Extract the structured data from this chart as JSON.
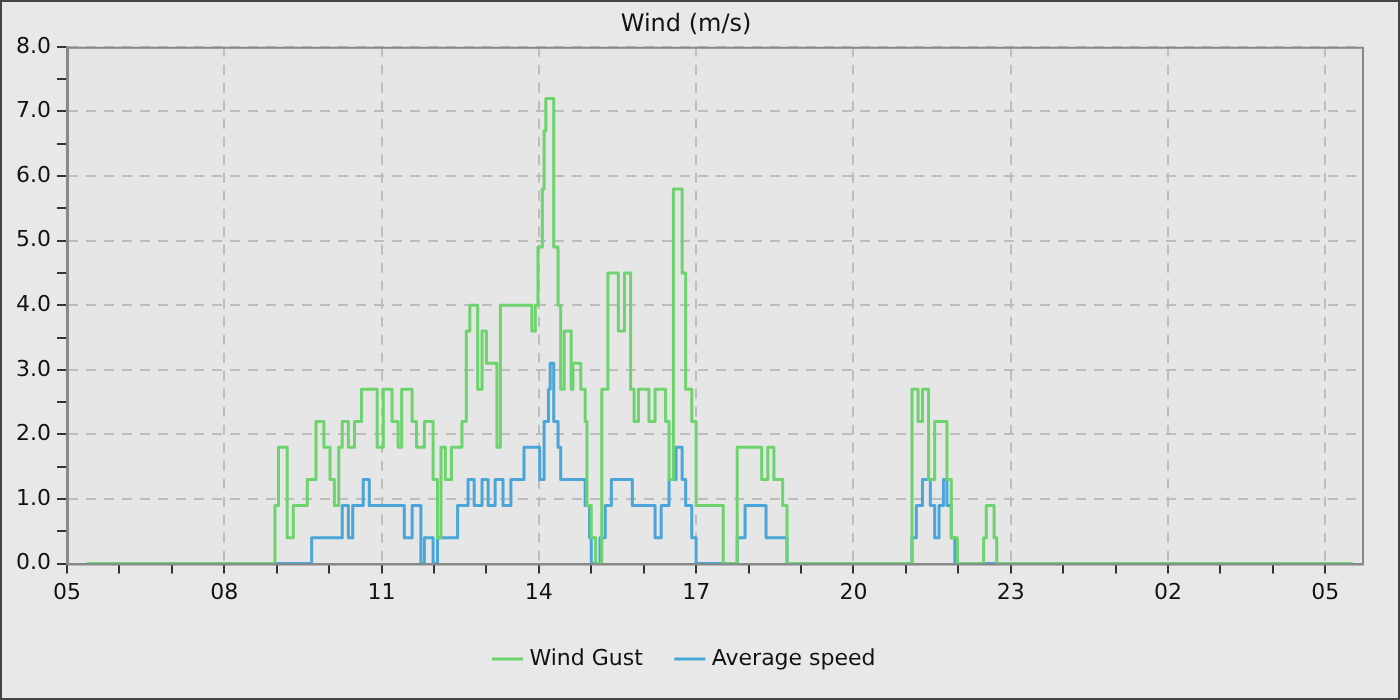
{
  "chart_data": {
    "type": "step",
    "title": "Wind (m/s)",
    "xlim": [
      "--01-01T05:00",
      "--01-02T05:42"
    ],
    "ylim": [
      0,
      8
    ],
    "xticks": [
      {
        "value": "--01-01T05:00",
        "label": "05"
      },
      {
        "value": "--01-01T06:00",
        "label": null
      },
      {
        "value": "--01-01T07:00",
        "label": null
      },
      {
        "value": "--01-01T08:00",
        "label": "08"
      },
      {
        "value": "--01-01T09:00",
        "label": null
      },
      {
        "value": "--01-01T10:00",
        "label": null
      },
      {
        "value": "--01-01T11:00",
        "label": "11"
      },
      {
        "value": "--01-01T12:00",
        "label": null
      },
      {
        "value": "--01-01T13:00",
        "label": null
      },
      {
        "value": "--01-01T14:00",
        "label": "14"
      },
      {
        "value": "--01-01T15:00",
        "label": null
      },
      {
        "value": "--01-01T16:00",
        "label": null
      },
      {
        "value": "--01-01T17:00",
        "label": "17"
      },
      {
        "value": "--01-01T18:00",
        "label": null
      },
      {
        "value": "--01-01T19:00",
        "label": null
      },
      {
        "value": "--01-01T20:00",
        "label": "20"
      },
      {
        "value": "--01-01T21:00",
        "label": null
      },
      {
        "value": "--01-01T22:00",
        "label": null
      },
      {
        "value": "--01-01T23:00",
        "label": "23"
      },
      {
        "value": "--01-02T00:00",
        "label": null
      },
      {
        "value": "--01-02T01:00",
        "label": null
      },
      {
        "value": "--01-02T02:00",
        "label": "02"
      },
      {
        "value": "--01-02T03:00",
        "label": null
      },
      {
        "value": "--01-02T04:00",
        "label": null
      },
      {
        "value": "--01-02T05:00",
        "label": "05"
      }
    ],
    "yticks": [
      {
        "value": 0,
        "label": "0.0"
      },
      {
        "value": 0.5,
        "label": null
      },
      {
        "value": 1,
        "label": "1.0"
      },
      {
        "value": 1.5,
        "label": null
      },
      {
        "value": 2,
        "label": "2.0"
      },
      {
        "value": 2.5,
        "label": null
      },
      {
        "value": 3,
        "label": "3.0"
      },
      {
        "value": 3.5,
        "label": null
      },
      {
        "value": 4,
        "label": "4.0"
      },
      {
        "value": 4.5,
        "label": null
      },
      {
        "value": 5,
        "label": "5.0"
      },
      {
        "value": 5.5,
        "label": null
      },
      {
        "value": 6,
        "label": "6.0"
      },
      {
        "value": 6.5,
        "label": null
      },
      {
        "value": 7,
        "label": "7.0"
      },
      {
        "value": 7.5,
        "label": null
      },
      {
        "value": 8,
        "label": "8.0"
      }
    ],
    "grid": true,
    "legend": "bottom",
    "marker": "none",
    "line_style": "solid",
    "series": [
      {
        "name": "Wind Gust",
        "color": "#6dd46d",
        "x": [
          "--01-01T05:23",
          "--01-01T08:58",
          "--01-01T09:02",
          "--01-01T09:12",
          "--01-01T09:19",
          "--01-01T09:35",
          "--01-01T09:45",
          "--01-01T09:54",
          "--01-01T10:01",
          "--01-01T10:06",
          "--01-01T10:11",
          "--01-01T10:15",
          "--01-01T10:22",
          "--01-01T10:29",
          "--01-01T10:37",
          "--01-01T10:55",
          "--01-01T11:02",
          "--01-01T11:12",
          "--01-01T11:19",
          "--01-01T11:23",
          "--01-01T11:35",
          "--01-01T11:40",
          "--01-01T11:49",
          "--01-01T11:59",
          "--01-01T12:04",
          "--01-01T12:08",
          "--01-01T12:13",
          "--01-01T12:20",
          "--01-01T12:32",
          "--01-01T12:37",
          "--01-01T12:41",
          "--01-01T12:50",
          "--01-01T12:55",
          "--01-01T13:00",
          "--01-01T13:12",
          "--01-01T13:16",
          "--01-01T13:52",
          "--01-01T13:56",
          "--01-01T13:59",
          "--01-01T14:04",
          "--01-01T14:06",
          "--01-01T14:08",
          "--01-01T14:17",
          "--01-01T14:22",
          "--01-01T14:25",
          "--01-01T14:29",
          "--01-01T14:37",
          "--01-01T14:39",
          "--01-01T14:48",
          "--01-01T14:53",
          "--01-01T14:55",
          "--01-01T15:00",
          "--01-01T15:05",
          "--01-01T15:12",
          "--01-01T15:19",
          "--01-01T15:31",
          "--01-01T15:38",
          "--01-01T15:45",
          "--01-01T15:49",
          "--01-01T15:54",
          "--01-01T16:06",
          "--01-01T16:13",
          "--01-01T16:25",
          "--01-01T16:29",
          "--01-01T16:34",
          "--01-01T16:44",
          "--01-01T16:48",
          "--01-01T16:55",
          "--01-01T17:00",
          "--01-01T17:31",
          "--01-01T17:47",
          "--01-01T18:15",
          "--01-01T18:22",
          "--01-01T18:29",
          "--01-01T18:39",
          "--01-01T18:44",
          "--01-01T21:07",
          "--01-01T21:14",
          "--01-01T21:19",
          "--01-01T21:26",
          "--01-01T21:33",
          "--01-01T21:47",
          "--01-01T21:52",
          "--01-01T21:59",
          "--01-01T22:29",
          "--01-01T22:32",
          "--01-01T22:41",
          "--01-01T22:44",
          "--01-02T05:31"
        ],
        "values": [
          0,
          0.9,
          1.8,
          0.4,
          0.9,
          1.3,
          2.2,
          1.8,
          1.3,
          0.9,
          1.8,
          2.2,
          1.8,
          2.2,
          2.7,
          1.8,
          2.7,
          2.2,
          1.8,
          2.7,
          2.2,
          1.8,
          2.2,
          1.3,
          0.4,
          1.8,
          1.3,
          1.8,
          2.2,
          3.6,
          4.0,
          2.7,
          3.6,
          3.1,
          1.8,
          4.0,
          3.6,
          4.0,
          4.9,
          5.8,
          6.7,
          7.2,
          4.9,
          4.0,
          2.7,
          3.6,
          2.7,
          3.1,
          2.7,
          2.2,
          0.9,
          0.4,
          0,
          2.7,
          4.5,
          3.6,
          4.5,
          2.7,
          2.2,
          2.7,
          2.2,
          2.7,
          2.2,
          1.3,
          5.8,
          4.5,
          2.7,
          2.2,
          0.9,
          0,
          1.8,
          1.3,
          1.8,
          1.3,
          0.9,
          0,
          2.7,
          2.2,
          2.7,
          1.3,
          2.2,
          1.3,
          0.4,
          0,
          0.4,
          0.9,
          0.4,
          0,
          0
        ]
      },
      {
        "name": "Average speed",
        "color": "#4aa6d8",
        "x": [
          "--01-01T05:23",
          "--01-01T09:40",
          "--01-01T10:15",
          "--01-01T10:22",
          "--01-01T10:27",
          "--01-01T10:39",
          "--01-01T10:46",
          "--01-01T11:26",
          "--01-01T11:35",
          "--01-01T11:45",
          "--01-01T11:49",
          "--01-01T11:59",
          "--01-01T12:04",
          "--01-01T12:27",
          "--01-01T12:39",
          "--01-01T12:46",
          "--01-01T12:55",
          "--01-01T13:02",
          "--01-01T13:10",
          "--01-01T13:19",
          "--01-01T13:28",
          "--01-01T13:43",
          "--01-01T14:01",
          "--01-01T14:06",
          "--01-01T14:11",
          "--01-01T14:13",
          "--01-01T14:17",
          "--01-01T14:22",
          "--01-01T14:25",
          "--01-01T14:53",
          "--01-01T14:58",
          "--01-01T15:00",
          "--01-01T15:10",
          "--01-01T15:16",
          "--01-01T15:23",
          "--01-01T15:47",
          "--01-01T16:13",
          "--01-01T16:20",
          "--01-01T16:29",
          "--01-01T16:37",
          "--01-01T16:44",
          "--01-01T16:48",
          "--01-01T16:55",
          "--01-01T17:00",
          "--01-01T17:47",
          "--01-01T17:56",
          "--01-01T18:20",
          "--01-01T18:44",
          "--01-01T21:07",
          "--01-01T21:12",
          "--01-01T21:19",
          "--01-01T21:28",
          "--01-01T21:33",
          "--01-01T21:38",
          "--01-01T21:43",
          "--01-01T21:47",
          "--01-01T21:52",
          "--01-01T21:56",
          "--01-02T05:31"
        ],
        "values": [
          0,
          0.4,
          0.9,
          0.4,
          0.9,
          1.3,
          0.9,
          0.4,
          0.9,
          0,
          0.4,
          0,
          0.4,
          0.9,
          1.3,
          0.9,
          1.3,
          0.9,
          1.3,
          0.9,
          1.3,
          1.8,
          1.3,
          2.2,
          2.7,
          3.1,
          2.2,
          1.8,
          1.3,
          0.9,
          0.4,
          0,
          0.4,
          0.9,
          1.3,
          0.9,
          0.4,
          0.9,
          1.3,
          1.8,
          1.3,
          0.9,
          0.4,
          0,
          0.4,
          0.9,
          0.4,
          0,
          0.4,
          0.9,
          1.3,
          0.9,
          0.4,
          0.9,
          1.3,
          0.9,
          0.4,
          0,
          0
        ]
      }
    ]
  }
}
